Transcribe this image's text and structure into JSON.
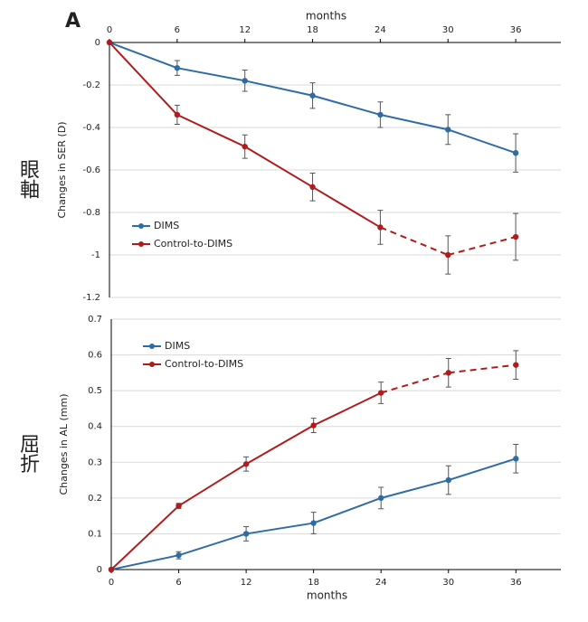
{
  "panel_label": "A",
  "chart_data": [
    {
      "type": "line",
      "side_label": "眼軸",
      "xlabel": "months",
      "ylabel": "Changes in SER (D)",
      "xaxis_position": "top",
      "x": [
        0,
        6,
        12,
        18,
        24,
        30,
        36
      ],
      "xlim": [
        0,
        40
      ],
      "xticks": [
        0,
        6,
        12,
        18,
        24,
        30,
        36
      ],
      "ylim": [
        -1.2,
        0
      ],
      "yticks": [
        0,
        -0.2,
        -0.4,
        -0.6,
        -0.8,
        -1,
        -1.2
      ],
      "grid": true,
      "legend": "center left",
      "series": [
        {
          "name": "DIMS",
          "color": "#2e6ca4",
          "values": [
            0,
            -0.12,
            -0.18,
            -0.25,
            -0.34,
            -0.41,
            -0.52
          ],
          "errors": [
            null,
            0.035,
            0.05,
            0.06,
            0.06,
            0.07,
            0.09
          ]
        },
        {
          "name": "Control-to-DIMS",
          "color": "#b01c1c",
          "values": [
            0,
            -0.34,
            -0.49,
            -0.68,
            -0.87,
            -1.0,
            -0.915
          ],
          "errors": [
            null,
            0.045,
            0.055,
            0.065,
            0.08,
            0.09,
            0.11
          ],
          "dashed_from": 24
        }
      ]
    },
    {
      "type": "line",
      "side_label": "屈折",
      "xlabel": "months",
      "ylabel": "Changes in AL (mm)",
      "xaxis_position": "bottom",
      "x": [
        0,
        6,
        12,
        18,
        24,
        30,
        36
      ],
      "xlim": [
        0,
        40
      ],
      "xticks": [
        0,
        6,
        12,
        18,
        24,
        30,
        36
      ],
      "ylim": [
        0,
        0.7
      ],
      "yticks": [
        0,
        0.1,
        0.2,
        0.3,
        0.4,
        0.5,
        0.6,
        0.7
      ],
      "grid": true,
      "legend": "upper left",
      "series": [
        {
          "name": "DIMS",
          "color": "#2e6ca4",
          "values": [
            0,
            0.04,
            0.1,
            0.13,
            0.2,
            0.25,
            0.31
          ],
          "errors": [
            null,
            0.01,
            0.02,
            0.03,
            0.03,
            0.04,
            0.04
          ]
        },
        {
          "name": "Control-to-DIMS",
          "color": "#b01c1c",
          "values": [
            0,
            0.178,
            0.295,
            0.403,
            0.494,
            0.55,
            0.572
          ],
          "errors": [
            null,
            0.007,
            0.02,
            0.02,
            0.03,
            0.04,
            0.04
          ],
          "dashed_from": 24
        }
      ]
    }
  ]
}
